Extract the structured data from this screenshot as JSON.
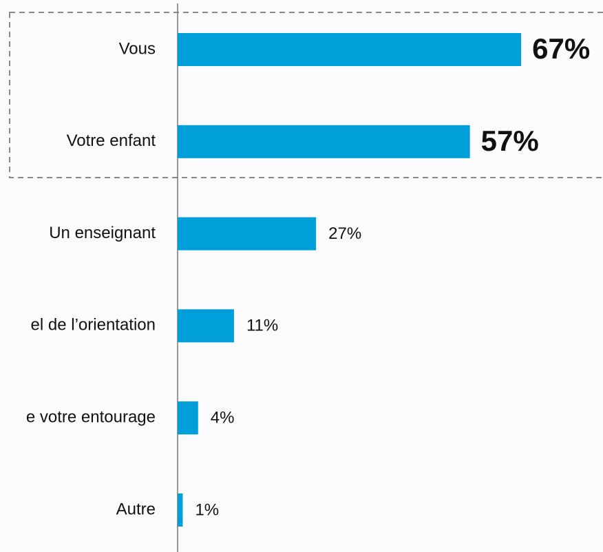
{
  "chart_data": {
    "type": "bar",
    "categories": [
      "Vous",
      "Votre enfant",
      "Un enseignant",
      "el de l’orientation",
      "e votre entourage",
      "Autre"
    ],
    "values": [
      67,
      57,
      27,
      11,
      4,
      1
    ],
    "value_labels": [
      "67%",
      "57%",
      "27%",
      "11%",
      "4%",
      "1%"
    ],
    "color": "#009fd9"
  }
}
